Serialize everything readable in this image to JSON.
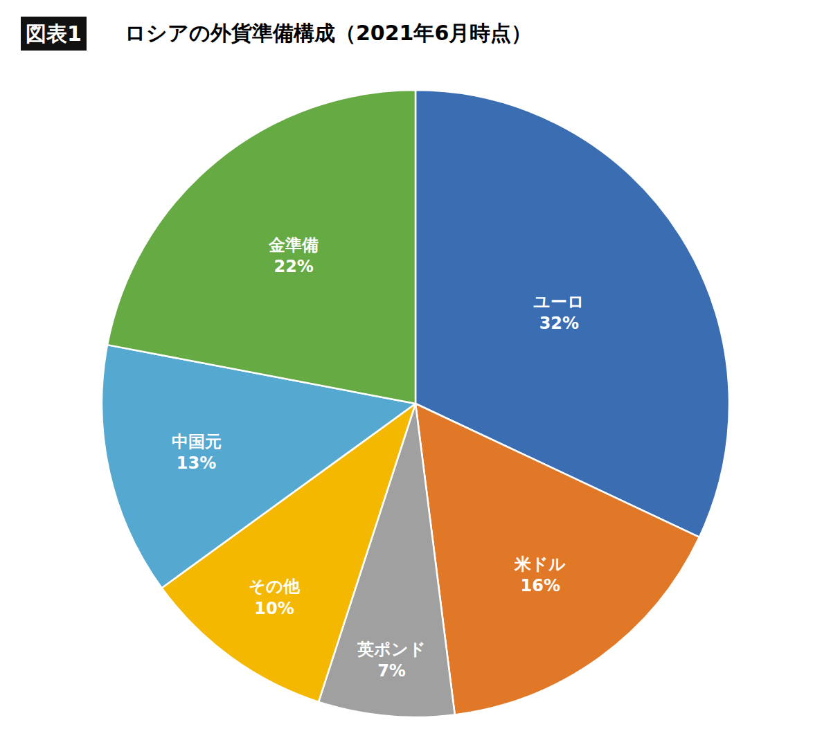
{
  "chart_data": {
    "type": "pie",
    "title": "ロシアの外貨準備構成（2021年6月時点）",
    "annotations": [
      "図表1"
    ],
    "categories": [
      "ユーロ",
      "米ドル",
      "英ポンド",
      "その他",
      "中国元",
      "金準備"
    ],
    "values": [
      32,
      16,
      7,
      10,
      13,
      22
    ],
    "value_labels": [
      "32%",
      "16%",
      "7%",
      "10%",
      "13%",
      "22%"
    ],
    "colors": [
      "#3B6DB3",
      "#E07828",
      "#A0A0A0",
      "#F5B800",
      "#55A8D0",
      "#66AA44"
    ],
    "data_labels": true
  }
}
